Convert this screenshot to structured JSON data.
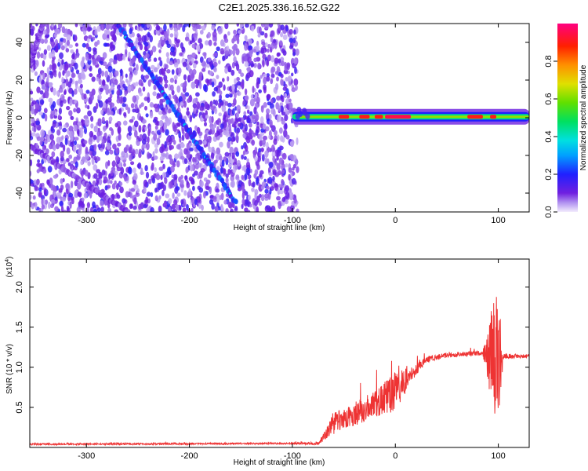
{
  "title": "C2E1.2025.336.16.52.G22",
  "chart_data": [
    {
      "type": "heatmap",
      "name": "spectrogram",
      "xlabel": "Height of straight line (km)",
      "ylabel": "Frequency (Hz)",
      "xlim": [
        -355,
        130
      ],
      "ylim": [
        -50,
        50
      ],
      "xticks": [
        -300,
        -200,
        -100,
        0,
        100
      ],
      "xtick_labels": [
        "-300",
        "-200",
        "-100",
        "0",
        "100"
      ],
      "yticks": [
        -40,
        -20,
        0,
        20,
        40
      ],
      "ytick_labels": [
        "-40",
        "-20",
        "0",
        "20",
        "40"
      ],
      "noise_region_x": [
        -355,
        -95
      ],
      "features": [
        {
          "name": "descending line A",
          "x": [
            -270,
            -155
          ],
          "y": [
            50,
            -45
          ],
          "amplitude": 0.25
        },
        {
          "name": "descending line B",
          "x": [
            -355,
            -260
          ],
          "y": [
            -15,
            -50
          ],
          "amplitude": 0.1
        },
        {
          "name": "descending line C",
          "x": [
            -355,
            -342
          ],
          "y": [
            28,
            50
          ],
          "amplitude": 0.1
        },
        {
          "name": "main carrier ridge",
          "x": [
            -100,
            130
          ],
          "y": [
            0.5,
            0.5
          ],
          "amplitude": 0.7
        }
      ],
      "ridge_hotspots": [
        {
          "x": [
            -55,
            -45
          ],
          "amplitude": 0.9
        },
        {
          "x": [
            -35,
            -25
          ],
          "amplitude": 0.9
        },
        {
          "x": [
            -20,
            -12
          ],
          "amplitude": 0.9
        },
        {
          "x": [
            -10,
            15
          ],
          "amplitude": 0.95
        },
        {
          "x": [
            70,
            85
          ],
          "amplitude": 0.9
        },
        {
          "x": [
            92,
            98
          ],
          "amplitude": 0.9
        }
      ]
    },
    {
      "type": "colorbar",
      "name": "amplitude-scale",
      "label": "Normalized spectral amplitude",
      "range": [
        0,
        1
      ],
      "ticks": [
        0.0,
        0.2,
        0.4,
        0.6,
        0.8
      ],
      "tick_labels": [
        "0.0",
        "0.2",
        "0.4",
        "0.6",
        "0.8"
      ]
    },
    {
      "type": "line",
      "name": "snr",
      "xlabel": "Height of straight line (km)",
      "ylabel": "SNR (10 * v/v)",
      "y_multiplier_label": "(x10",
      "y_multiplier_exponent": "4",
      "y_multiplier_close": ")",
      "xlim": [
        -355,
        130
      ],
      "ylim": [
        0,
        2.35
      ],
      "xticks": [
        -300,
        -200,
        -100,
        0,
        100
      ],
      "xtick_labels": [
        "-300",
        "-200",
        "-100",
        "0",
        "100"
      ],
      "yticks": [
        0.5,
        1.0,
        1.5,
        2.0
      ],
      "ytick_labels": [
        "0.5",
        "1.0",
        "1.5",
        "2.0"
      ],
      "color": "#ee3333",
      "series_shape": {
        "x": [
          -355,
          -100,
          -75,
          -60,
          -45,
          -30,
          -15,
          0,
          15,
          30,
          50,
          70,
          85,
          90,
          95,
          100,
          105,
          110,
          130
        ],
        "y": [
          0.04,
          0.05,
          0.05,
          0.3,
          0.38,
          0.48,
          0.58,
          0.7,
          0.9,
          1.1,
          1.15,
          1.17,
          1.18,
          1.15,
          1.2,
          1.1,
          1.15,
          1.14,
          1.14
        ],
        "noise": [
          0.01,
          0.01,
          0.02,
          0.15,
          0.14,
          0.16,
          0.18,
          0.25,
          0.1,
          0.04,
          0.03,
          0.03,
          0.03,
          0.35,
          0.8,
          0.8,
          0.04,
          0.03,
          0.02
        ]
      }
    }
  ]
}
